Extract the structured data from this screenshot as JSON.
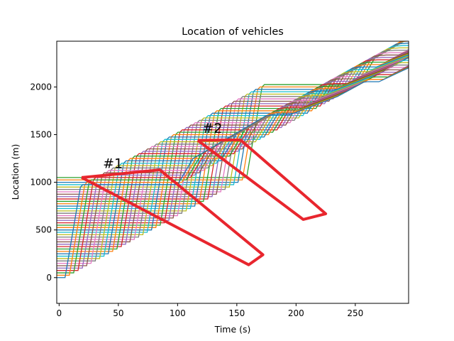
{
  "chart_data": {
    "type": "line",
    "title": "Location of vehicles",
    "xlabel": "Time (s)",
    "ylabel": "Location (m)",
    "xlim": [
      -2,
      295
    ],
    "ylim": [
      -270,
      2480
    ],
    "xticks": [
      0,
      50,
      100,
      150,
      200,
      250
    ],
    "yticks": [
      0,
      500,
      1000,
      1500,
      2000
    ],
    "grid": false,
    "vehicle_count": 43,
    "lane_spacing_m": 25,
    "series_colors": [
      "#1f77b4",
      "#ff7f0e",
      "#2ca02c",
      "#d62728",
      "#9467bd",
      "#8c564b",
      "#e377c2",
      "#7f7f7f",
      "#bcbd22",
      "#17becf"
    ],
    "trajectory_template": {
      "description_units": "time in s, location in m; per-vehicle time shift = delay_step_s * k, location shift = lane_spacing_m * k",
      "delay_step_s": 3.65,
      "accel_start_t": 0,
      "queue_position_m": 0,
      "first_vehicle_path": [
        [
          0,
          0
        ],
        [
          5,
          0
        ],
        [
          18,
          950
        ],
        [
          20,
          975
        ],
        [
          100,
          975
        ],
        [
          113,
          1250
        ],
        [
          175,
          1700
        ],
        [
          185,
          1710
        ],
        [
          195,
          1710
        ],
        [
          235,
          1900
        ],
        [
          257,
          2050
        ],
        [
          260,
          2055
        ],
        [
          270,
          2055
        ],
        [
          295,
          2200
        ]
      ]
    },
    "annotations": [
      {
        "label": "#1",
        "x": 37,
        "y": 1150
      },
      {
        "label": "#2",
        "x": 121,
        "y": 1520
      }
    ],
    "highlight_regions": [
      {
        "name": "#1",
        "color": "#e8262e",
        "points": [
          [
            19,
            1050
          ],
          [
            85,
            1130
          ],
          [
            172,
            240
          ],
          [
            160,
            135
          ],
          [
            19,
            1050
          ]
        ]
      },
      {
        "name": "#2",
        "color": "#e8262e",
        "points": [
          [
            117,
            1440
          ],
          [
            153,
            1445
          ],
          [
            225,
            670
          ],
          [
            206,
            610
          ],
          [
            117,
            1440
          ]
        ]
      }
    ]
  }
}
